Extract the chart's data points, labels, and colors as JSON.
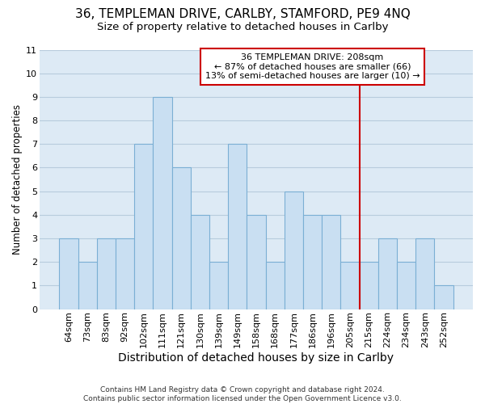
{
  "title": "36, TEMPLEMAN DRIVE, CARLBY, STAMFORD, PE9 4NQ",
  "subtitle": "Size of property relative to detached houses in Carlby",
  "xlabel": "Distribution of detached houses by size in Carlby",
  "ylabel": "Number of detached properties",
  "categories": [
    "64sqm",
    "73sqm",
    "83sqm",
    "92sqm",
    "102sqm",
    "111sqm",
    "121sqm",
    "130sqm",
    "139sqm",
    "149sqm",
    "158sqm",
    "168sqm",
    "177sqm",
    "186sqm",
    "196sqm",
    "205sqm",
    "215sqm",
    "224sqm",
    "234sqm",
    "243sqm",
    "252sqm"
  ],
  "values": [
    3,
    2,
    3,
    3,
    7,
    9,
    6,
    4,
    2,
    7,
    4,
    2,
    5,
    4,
    4,
    2,
    2,
    3,
    2,
    3,
    1
  ],
  "bar_color": "#c9dff2",
  "bar_edge_color": "#7bafd4",
  "grid_color": "#b8ccdd",
  "plot_bg_color": "#ddeaf5",
  "fig_bg_color": "#ffffff",
  "annotation_line1": "36 TEMPLEMAN DRIVE: 208sqm",
  "annotation_line2": "← 87% of detached houses are smaller (66)",
  "annotation_line3": "13% of semi-detached houses are larger (10) →",
  "annotation_box_facecolor": "#ffffff",
  "annotation_box_edgecolor": "#cc0000",
  "vline_color": "#cc0000",
  "vline_x": 15.5,
  "ylim": [
    0,
    11
  ],
  "yticks": [
    0,
    1,
    2,
    3,
    4,
    5,
    6,
    7,
    8,
    9,
    10,
    11
  ],
  "footer_line1": "Contains HM Land Registry data © Crown copyright and database right 2024.",
  "footer_line2": "Contains public sector information licensed under the Open Government Licence v3.0.",
  "title_fontsize": 11,
  "subtitle_fontsize": 9.5,
  "xlabel_fontsize": 10,
  "ylabel_fontsize": 8.5,
  "tick_fontsize": 8,
  "annotation_fontsize": 8,
  "footer_fontsize": 6.5
}
